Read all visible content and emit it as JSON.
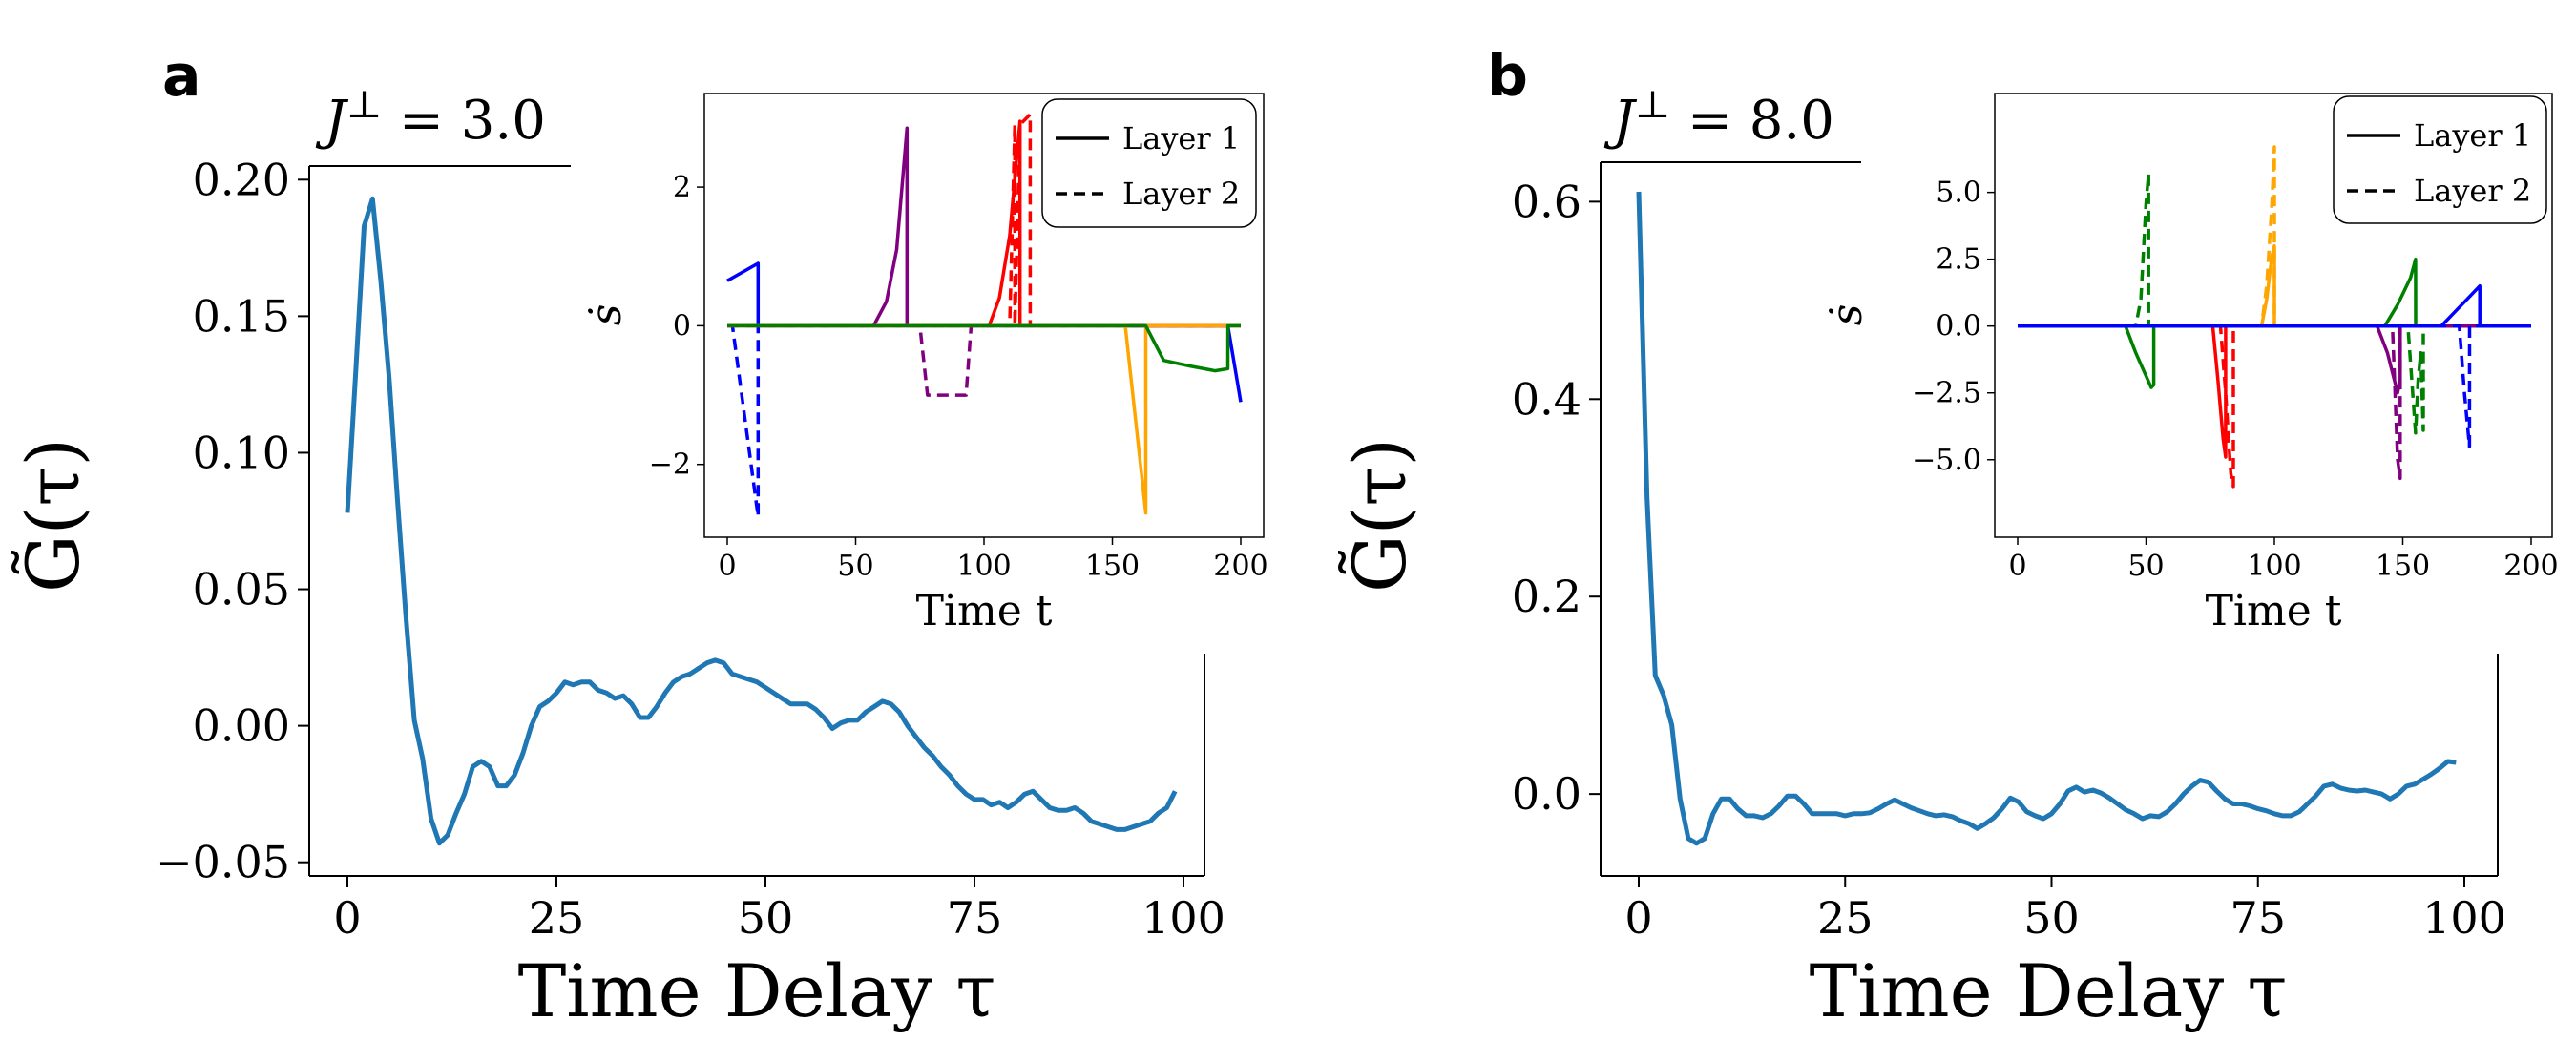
{
  "chart_data": [
    {
      "type": "line",
      "panel_letter": "a",
      "title": "J⊥ = 3.0",
      "title_italic": "J",
      "title_sup": "⊥",
      "title_rest": " = 3.0",
      "xlabel": "Time Delay τ",
      "ylabel": "G̃(τ)",
      "xlim": [
        -4,
        104
      ],
      "ylim": [
        -0.055,
        0.205
      ],
      "xticks": [
        0,
        25,
        50,
        75,
        100
      ],
      "xtick_labels": [
        "0",
        "25",
        "50",
        "75",
        "100"
      ],
      "yticks": [
        -0.05,
        0,
        0.05,
        0.1,
        0.15,
        0.2
      ],
      "ytick_labels": [
        "−0.05",
        "0.00",
        "0.05",
        "0.10",
        "0.15",
        "0.20"
      ],
      "color": "#1f77b4",
      "series": [
        {
          "name": "G(τ)",
          "x": [
            0,
            1,
            2,
            3,
            4,
            5,
            6,
            7,
            8,
            9,
            10,
            11,
            12,
            13,
            14,
            15,
            16,
            17,
            18,
            19,
            20,
            21,
            22,
            23,
            24,
            25,
            26,
            27,
            28,
            29,
            30,
            31,
            32,
            33,
            34,
            35,
            36,
            37,
            38,
            39,
            40,
            41,
            42,
            43,
            44,
            45,
            46,
            47,
            48,
            49,
            50,
            51,
            52,
            53,
            54,
            55,
            56,
            57,
            58,
            59,
            60,
            61,
            62,
            63,
            64,
            65,
            66,
            67,
            68,
            69,
            70,
            71,
            72,
            73,
            74,
            75,
            76,
            77,
            78,
            79,
            80,
            81,
            82,
            83,
            84,
            85,
            86,
            87,
            88,
            89,
            90,
            91,
            92,
            93,
            94,
            95,
            96,
            97,
            98,
            99
          ],
          "y": [
            0.078,
            0.13,
            0.183,
            0.193,
            0.163,
            0.127,
            0.082,
            0.04,
            0.002,
            -0.012,
            -0.034,
            -0.043,
            -0.04,
            -0.032,
            -0.025,
            -0.015,
            -0.013,
            -0.015,
            -0.022,
            -0.022,
            -0.018,
            -0.01,
            0.0,
            0.007,
            0.009,
            0.012,
            0.016,
            0.015,
            0.016,
            0.016,
            0.013,
            0.012,
            0.01,
            0.011,
            0.008,
            0.003,
            0.003,
            0.007,
            0.012,
            0.016,
            0.018,
            0.019,
            0.021,
            0.023,
            0.024,
            0.023,
            0.019,
            0.018,
            0.017,
            0.016,
            0.014,
            0.012,
            0.01,
            0.008,
            0.008,
            0.008,
            0.006,
            0.003,
            -0.001,
            0.001,
            0.002,
            0.002,
            0.005,
            0.007,
            0.009,
            0.008,
            0.005,
            0.0,
            -0.004,
            -0.008,
            -0.011,
            -0.015,
            -0.018,
            -0.022,
            -0.025,
            -0.027,
            -0.027,
            -0.029,
            -0.028,
            -0.03,
            -0.028,
            -0.025,
            -0.024,
            -0.027,
            -0.03,
            -0.031,
            -0.031,
            -0.03,
            -0.032,
            -0.035,
            -0.036,
            -0.037,
            -0.038,
            -0.038,
            -0.037,
            -0.036,
            -0.035,
            -0.032,
            -0.03,
            -0.024
          ]
        }
      ],
      "inset": {
        "xlabel": "Time t",
        "ylabel": "ṡ",
        "xlim": [
          -10,
          210
        ],
        "ylim": [
          -3.05,
          3.35
        ],
        "xticks": [
          0,
          50,
          100,
          150,
          200
        ],
        "xtick_labels": [
          "0",
          "50",
          "100",
          "150",
          "200"
        ],
        "yticks": [
          -2,
          0,
          2
        ],
        "ytick_labels": [
          "−2",
          "0",
          "2"
        ],
        "legend": [
          {
            "label": "Layer 1",
            "style": "solid"
          },
          {
            "label": "Layer 2",
            "style": "dashed"
          }
        ],
        "series": [
          {
            "name": "blue layer 1",
            "color": "#0000ff",
            "style": "solid",
            "x": [
              0,
              12,
              12.01,
              195,
              200
            ],
            "y": [
              0.65,
              0.9,
              0,
              0,
              -1.1
            ]
          },
          {
            "name": "blue layer 2",
            "color": "#0000ff",
            "style": "dashed",
            "x": [
              0,
              2,
              12,
              12.01,
              200
            ],
            "y": [
              0,
              0,
              -2.75,
              0,
              0
            ]
          },
          {
            "name": "purple layer 1",
            "color": "#800080",
            "style": "solid",
            "x": [
              0,
              57,
              62,
              66,
              70,
              70.01,
              200
            ],
            "y": [
              0,
              0,
              0.35,
              1.1,
              2.85,
              0,
              0
            ]
          },
          {
            "name": "purple layer 2",
            "color": "#800080",
            "style": "dashed",
            "x": [
              0,
              75,
              78,
              93,
              95,
              200
            ],
            "y": [
              0,
              0,
              -1.0,
              -1.0,
              0,
              0
            ]
          },
          {
            "name": "red layer 1",
            "color": "#ff0000",
            "style": "solid",
            "x": [
              0,
              102,
              106,
              110,
              114,
              114.01,
              200
            ],
            "y": [
              0,
              0,
              0.4,
              1.3,
              2.95,
              0,
              0
            ]
          },
          {
            "name": "red layer 2",
            "color": "#ff0000",
            "style": "dashed",
            "x": [
              0,
              110,
              112,
              112.01,
              114,
              118,
              118.01,
              200
            ],
            "y": [
              0,
              0,
              2.9,
              0,
              2.9,
              3.05,
              0,
              0
            ]
          },
          {
            "name": "orange layer 1",
            "color": "#ffa500",
            "style": "solid",
            "x": [
              0,
              155,
              163,
              163.01,
              200
            ],
            "y": [
              0,
              0,
              -2.7,
              0,
              0
            ]
          },
          {
            "name": "green layer 1",
            "color": "#008000",
            "style": "solid",
            "x": [
              0,
              163,
              170,
              180,
              190,
              195,
              195.01,
              200
            ],
            "y": [
              0,
              0,
              -0.5,
              -0.58,
              -0.65,
              -0.62,
              0,
              0
            ]
          }
        ]
      }
    },
    {
      "type": "line",
      "panel_letter": "b",
      "title": "J⊥ = 8.0",
      "title_italic": "J",
      "title_sup": "⊥",
      "title_rest": " = 8.0",
      "xlabel": "Time Delay τ",
      "ylabel": "G̃(τ)",
      "xlim": [
        -4,
        104
      ],
      "ylim": [
        -0.083,
        0.64
      ],
      "xticks": [
        0,
        25,
        50,
        75,
        100
      ],
      "xtick_labels": [
        "0",
        "25",
        "50",
        "75",
        "100"
      ],
      "yticks": [
        0,
        0.2,
        0.4,
        0.6
      ],
      "ytick_labels": [
        "0.0",
        "0.2",
        "0.4",
        "0.6"
      ],
      "color": "#1f77b4",
      "series": [
        {
          "name": "G(τ)",
          "x": [
            0,
            1,
            2,
            3,
            4,
            5,
            6,
            7,
            8,
            9,
            10,
            11,
            12,
            13,
            14,
            15,
            16,
            17,
            18,
            19,
            20,
            21,
            22,
            23,
            24,
            25,
            26,
            27,
            28,
            29,
            30,
            31,
            32,
            33,
            34,
            35,
            36,
            37,
            38,
            39,
            40,
            41,
            42,
            43,
            44,
            45,
            46,
            47,
            48,
            49,
            50,
            51,
            52,
            53,
            54,
            55,
            56,
            57,
            58,
            59,
            60,
            61,
            62,
            63,
            64,
            65,
            66,
            67,
            68,
            69,
            70,
            71,
            72,
            73,
            74,
            75,
            76,
            77,
            78,
            79,
            80,
            81,
            82,
            83,
            84,
            85,
            86,
            87,
            88,
            89,
            90,
            91,
            92,
            93,
            94,
            95,
            96,
            97,
            98,
            99
          ],
          "y": [
            0.61,
            0.3,
            0.12,
            0.1,
            0.07,
            -0.005,
            -0.045,
            -0.05,
            -0.045,
            -0.02,
            -0.005,
            -0.005,
            -0.015,
            -0.022,
            -0.022,
            -0.024,
            -0.02,
            -0.012,
            -0.002,
            -0.002,
            -0.01,
            -0.02,
            -0.02,
            -0.02,
            -0.02,
            -0.022,
            -0.02,
            -0.02,
            -0.019,
            -0.015,
            -0.01,
            -0.006,
            -0.01,
            -0.014,
            -0.017,
            -0.02,
            -0.022,
            -0.021,
            -0.023,
            -0.027,
            -0.03,
            -0.035,
            -0.03,
            -0.024,
            -0.015,
            -0.004,
            -0.008,
            -0.018,
            -0.022,
            -0.025,
            -0.02,
            -0.01,
            0.003,
            0.007,
            0.002,
            0.004,
            0.001,
            -0.004,
            -0.01,
            -0.016,
            -0.02,
            -0.025,
            -0.022,
            -0.023,
            -0.018,
            -0.01,
            0.0,
            0.008,
            0.014,
            0.012,
            0.003,
            -0.005,
            -0.01,
            -0.01,
            -0.012,
            -0.015,
            -0.017,
            -0.02,
            -0.022,
            -0.022,
            -0.018,
            -0.01,
            -0.002,
            0.008,
            0.01,
            0.006,
            0.004,
            0.003,
            0.004,
            0.002,
            0.0,
            -0.005,
            0.0,
            0.008,
            0.01,
            0.015,
            0.02,
            0.026,
            0.033,
            0.032
          ]
        }
      ],
      "inset": {
        "xlabel": "Time t",
        "ylabel": "ṡ",
        "xlim": [
          -10,
          210
        ],
        "ylim": [
          -7.9,
          8.7
        ],
        "xticks": [
          0,
          50,
          100,
          150,
          200
        ],
        "xtick_labels": [
          "0",
          "50",
          "100",
          "150",
          "200"
        ],
        "yticks": [
          -5,
          -2.5,
          0,
          2.5,
          5
        ],
        "ytick_labels": [
          "−5.0",
          "−2.5",
          "0.0",
          "2.5",
          "5.0"
        ],
        "legend": [
          {
            "label": "Layer 1",
            "style": "solid"
          },
          {
            "label": "Layer 2",
            "style": "dashed"
          }
        ],
        "series": [
          {
            "name": "green layer 1",
            "color": "#008000",
            "style": "solid",
            "x": [
              0,
              42,
              46,
              52,
              53,
              53.01,
              143,
              148,
              153,
              155,
              155.01,
              200
            ],
            "y": [
              0,
              0,
              -1.0,
              -2.3,
              -2.2,
              0,
              0,
              0.8,
              1.8,
              2.5,
              0,
              0
            ]
          },
          {
            "name": "green layer 2",
            "color": "#008000",
            "style": "dashed",
            "x": [
              0,
              46,
              48,
              50,
              51,
              51.01,
              152,
              155,
              156,
              157,
              158,
              158.01,
              200
            ],
            "y": [
              0,
              0,
              1.0,
              4.6,
              5.7,
              0,
              0,
              -4.0,
              -2.0,
              -1.0,
              -3.9,
              0,
              0
            ]
          },
          {
            "name": "red layer 1",
            "color": "#ff0000",
            "style": "solid",
            "x": [
              0,
              76,
              78,
              80,
              81,
              81.01,
              200
            ],
            "y": [
              0,
              0,
              -2.0,
              -4.2,
              -4.9,
              0,
              0
            ]
          },
          {
            "name": "red layer 2",
            "color": "#ff0000",
            "style": "dashed",
            "x": [
              0,
              79,
              81,
              83,
              84,
              84.01,
              200
            ],
            "y": [
              0,
              0,
              -2.5,
              -5.5,
              -6.0,
              0,
              0
            ]
          },
          {
            "name": "orange layer 1",
            "color": "#ffa500",
            "style": "solid",
            "x": [
              0,
              95,
              97,
              99,
              100,
              100.01,
              200
            ],
            "y": [
              0,
              0,
              1.0,
              2.6,
              3.0,
              0,
              0
            ]
          },
          {
            "name": "orange layer 2",
            "color": "#ffa500",
            "style": "dashed",
            "x": [
              0,
              95,
              97,
              99,
              100,
              100.01,
              200
            ],
            "y": [
              0,
              0,
              1.5,
              4.5,
              6.7,
              0,
              0
            ]
          },
          {
            "name": "purple layer 1",
            "color": "#800080",
            "style": "solid",
            "x": [
              0,
              140,
              144,
              148,
              149,
              149.01,
              200
            ],
            "y": [
              0,
              0,
              -1.0,
              -2.5,
              -2.0,
              0,
              0
            ]
          },
          {
            "name": "purple layer 2",
            "color": "#800080",
            "style": "dashed",
            "x": [
              0,
              146,
              148,
              149,
              149.01,
              200
            ],
            "y": [
              0,
              0,
              -5.0,
              -5.7,
              0,
              0
            ]
          },
          {
            "name": "blue layer 1",
            "color": "#0000ff",
            "style": "solid",
            "x": [
              0,
              165,
              170,
              175,
              180,
              180.01,
              200
            ],
            "y": [
              0,
              0,
              0.5,
              1.0,
              1.5,
              0,
              0
            ]
          },
          {
            "name": "blue layer 2",
            "color": "#0000ff",
            "style": "dashed",
            "x": [
              0,
              172,
              174,
              176,
              176.01,
              200
            ],
            "y": [
              0,
              0,
              -2.5,
              -4.5,
              0,
              0
            ]
          }
        ]
      }
    }
  ]
}
